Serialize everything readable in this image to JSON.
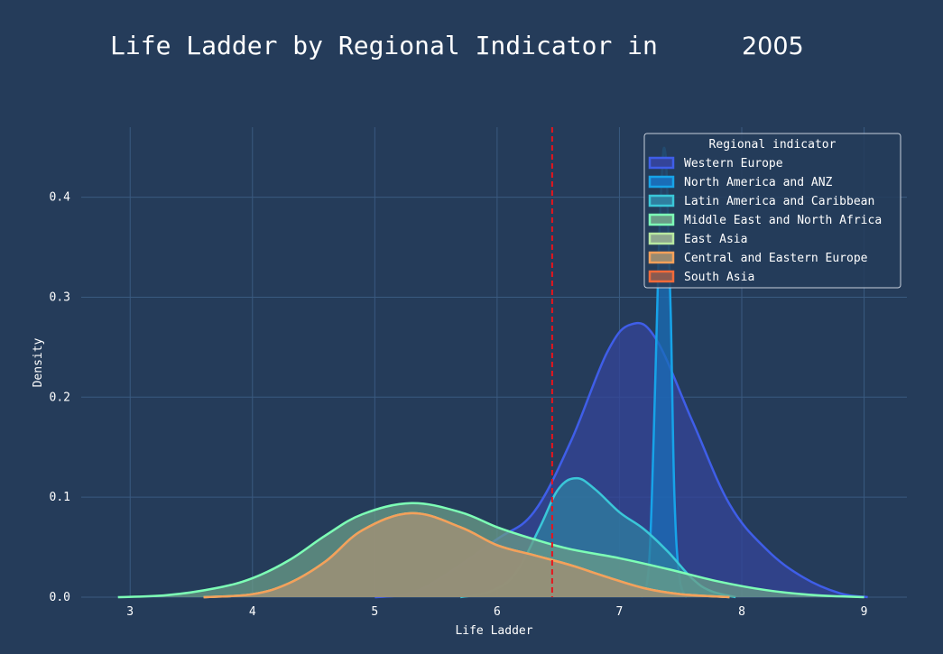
{
  "title": "Life Ladder by Regional Indicator in",
  "year_label": "2005",
  "chart_data": {
    "type": "area",
    "title": "Life Ladder by Regional Indicator in 2005",
    "xlabel": "Life Ladder",
    "ylabel": "Density",
    "xlim": [
      2.6,
      9.35
    ],
    "ylim": [
      0,
      0.47
    ],
    "xticks": [
      3,
      4,
      5,
      6,
      7,
      8,
      9
    ],
    "yticks": [
      0.0,
      0.1,
      0.2,
      0.3,
      0.4
    ],
    "xtick_labels": [
      "3",
      "4",
      "5",
      "6",
      "7",
      "8",
      "9"
    ],
    "ytick_labels": [
      "0.0",
      "0.1",
      "0.2",
      "0.3",
      "0.4"
    ],
    "grid": true,
    "legend_title": "Regional indicator",
    "legend_position": "top-right",
    "vline": {
      "x": 6.45,
      "color": "#e8141c",
      "style": "dashed"
    },
    "series": [
      {
        "name": "Western Europe",
        "color": "#3f5ee8",
        "fill": "#34449a",
        "x": [
          5.0,
          5.3,
          5.6,
          6.0,
          6.3,
          6.6,
          6.9,
          7.1,
          7.3,
          7.6,
          7.9,
          8.2,
          8.5,
          8.8,
          9.03
        ],
        "y": [
          0.0,
          0.004,
          0.024,
          0.058,
          0.085,
          0.155,
          0.245,
          0.273,
          0.258,
          0.175,
          0.093,
          0.048,
          0.02,
          0.004,
          0.0
        ]
      },
      {
        "name": "North America and ANZ",
        "color": "#17a3e8",
        "fill": "#1a6db8",
        "x": [
          7.18,
          7.24,
          7.28,
          7.32,
          7.35,
          7.37,
          7.39,
          7.42,
          7.45,
          7.49,
          7.55
        ],
        "y": [
          0.0,
          0.03,
          0.16,
          0.34,
          0.43,
          0.448,
          0.41,
          0.28,
          0.1,
          0.02,
          0.0
        ]
      },
      {
        "name": "Latin America and Caribbean",
        "color": "#3ac7d8",
        "fill": "#2f7fa0",
        "x": [
          5.7,
          5.95,
          6.15,
          6.35,
          6.5,
          6.65,
          6.8,
          7.0,
          7.2,
          7.4,
          7.6,
          7.75,
          7.95
        ],
        "y": [
          0.0,
          0.006,
          0.024,
          0.07,
          0.108,
          0.119,
          0.108,
          0.085,
          0.068,
          0.045,
          0.018,
          0.006,
          0.0
        ]
      },
      {
        "name": "Middle East and North Africa",
        "color": "#7dffb6",
        "fill": "#6a9c88",
        "x": [
          2.9,
          3.3,
          3.7,
          4.0,
          4.3,
          4.6,
          4.9,
          5.3,
          5.7,
          6.0,
          6.3,
          6.6,
          7.0,
          7.4,
          7.8,
          8.2,
          8.6,
          9.0
        ],
        "y": [
          0.0,
          0.002,
          0.009,
          0.019,
          0.037,
          0.062,
          0.083,
          0.094,
          0.085,
          0.07,
          0.058,
          0.048,
          0.039,
          0.028,
          0.016,
          0.007,
          0.002,
          0.0
        ]
      },
      {
        "name": "East Asia",
        "color": "#b8e8a0",
        "fill": "#8fa890",
        "x": [
          3.6,
          4.0,
          4.3,
          4.6,
          4.9,
          5.3,
          5.7,
          6.0,
          6.3,
          6.6,
          6.9,
          7.2,
          7.5,
          7.9
        ],
        "y": [
          0.0,
          0.003,
          0.014,
          0.036,
          0.067,
          0.084,
          0.07,
          0.052,
          0.042,
          0.032,
          0.02,
          0.009,
          0.003,
          0.0
        ]
      },
      {
        "name": "Central and Eastern Europe",
        "color": "#f5a05a",
        "fill": "#9a8a70",
        "x": [
          3.6,
          4.0,
          4.3,
          4.6,
          4.9,
          5.3,
          5.7,
          6.0,
          6.3,
          6.6,
          6.9,
          7.2,
          7.5,
          7.9
        ],
        "y": [
          0.0,
          0.003,
          0.014,
          0.036,
          0.067,
          0.084,
          0.07,
          0.052,
          0.042,
          0.032,
          0.02,
          0.009,
          0.003,
          0.0
        ]
      },
      {
        "name": "South Asia",
        "color": "#f06a3a",
        "fill": "#8a5a50",
        "x": [],
        "y": []
      }
    ]
  }
}
